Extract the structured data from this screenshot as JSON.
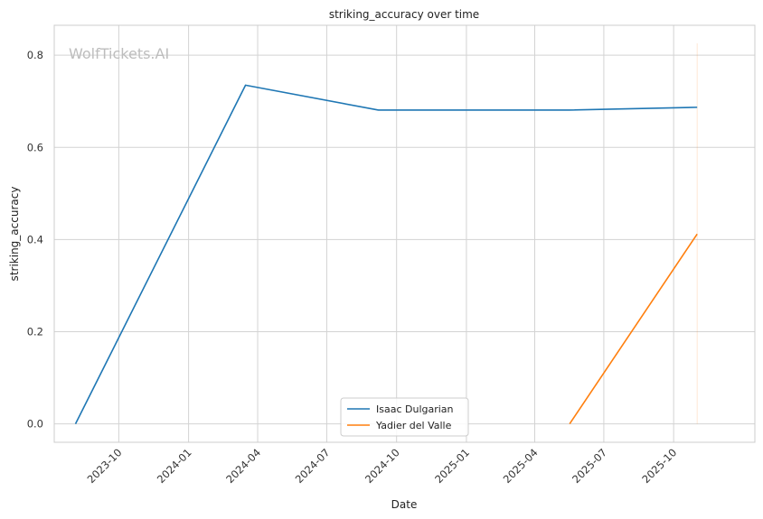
{
  "watermark": "WolfTickets.AI",
  "chart_data": {
    "type": "line",
    "title": "striking_accuracy over time",
    "xlabel": "Date",
    "ylabel": "striking_accuracy",
    "xlim": [
      "2023-07-08",
      "2026-01-16"
    ],
    "ylim": [
      -0.04,
      0.865
    ],
    "x_ticks": [
      "2023-10",
      "2024-01",
      "2024-04",
      "2024-07",
      "2024-10",
      "2025-01",
      "2025-04",
      "2025-07",
      "2025-10"
    ],
    "y_ticks": [
      "0.0",
      "0.2",
      "0.4",
      "0.6",
      "0.8"
    ],
    "grid": true,
    "legend": "lower-center",
    "series": [
      {
        "name": "Isaac Dulgarian",
        "color": "#1f77b4",
        "x": [
          "2023-08-05",
          "2024-03-16",
          "2024-09-07",
          "2025-05-17",
          "2025-11-01"
        ],
        "y": [
          0.0,
          0.735,
          0.681,
          0.681,
          0.687
        ]
      },
      {
        "name": "Yadier del Valle",
        "color": "#ff7f0e",
        "x": [
          "2025-05-17",
          "2025-11-01"
        ],
        "y": [
          0.0,
          0.412
        ]
      }
    ],
    "annotations": [
      {
        "type": "vline",
        "x": "2025-11-01",
        "color": "#ff7f0e",
        "opacity": 0.18
      }
    ]
  }
}
